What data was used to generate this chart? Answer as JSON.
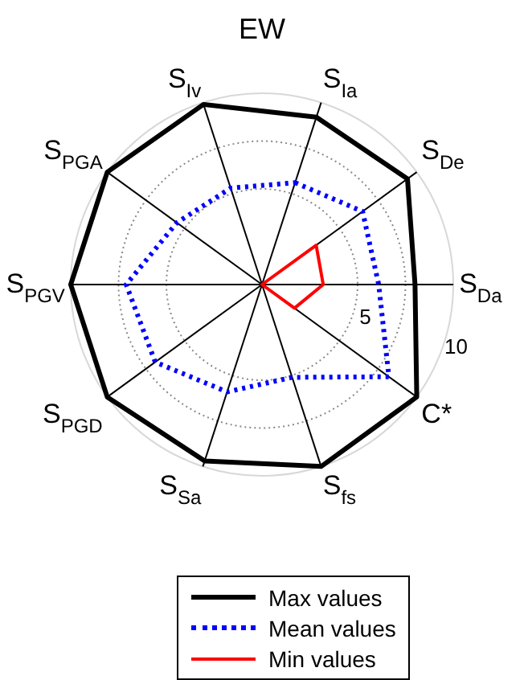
{
  "chart_data": {
    "type": "radar",
    "title": "EW",
    "categories": [
      "S$_{Ia}$",
      "S$_{De}$",
      "S$_{Da}$",
      "C*",
      "S$_{fs}$",
      "S$_{Sa}$",
      "S$_{PGD}$",
      "S$_{PGV}$",
      "S$_{PGA}$",
      "S$_{Iv}$"
    ],
    "series": [
      {
        "name": "Max values",
        "color": "#000000",
        "line_style": "solid",
        "values": [
          9.2,
          9.4,
          8.0,
          10,
          10,
          9.7,
          10,
          10,
          10,
          9.9
        ]
      },
      {
        "name": "Mean values",
        "color": "#0000ff",
        "line_style": "dotted",
        "values": [
          5.6,
          6.5,
          6.1,
          8.2,
          5.1,
          5.9,
          6.9,
          7.1,
          5.5,
          5.3
        ]
      },
      {
        "name": "Min values",
        "color": "#ff0000",
        "line_style": "solid",
        "values": [
          0,
          3.5,
          3.2,
          2.1,
          0,
          0,
          0,
          0,
          0,
          0
        ]
      }
    ],
    "ylim": [
      0,
      10
    ],
    "yticks": [
      5,
      10
    ],
    "grid": true,
    "legend": "bottom",
    "marker": "none"
  }
}
